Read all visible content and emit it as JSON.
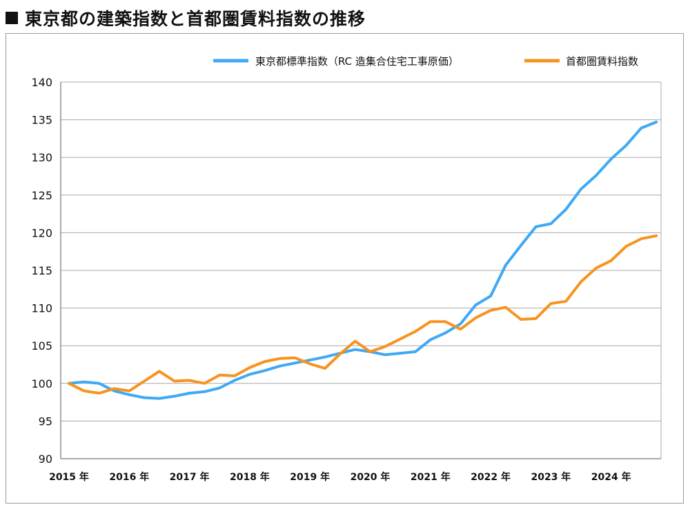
{
  "title": "東京都の建築指数と首都圏賃料指数の推移",
  "chart_data": {
    "type": "line",
    "title": "東京都の建築指数と首都圏賃料指数の推移",
    "ylim": [
      90,
      140
    ],
    "yticks": [
      "140",
      "135",
      "130",
      "125",
      "120",
      "115",
      "110",
      "105",
      "100",
      "95",
      "90"
    ],
    "xlim": [
      2015.0,
      2024.75
    ],
    "xticks": [
      {
        "x": 2015,
        "label": "2015 年"
      },
      {
        "x": 2016,
        "label": "2016 年"
      },
      {
        "x": 2017,
        "label": "2017 年"
      },
      {
        "x": 2018,
        "label": "2018 年"
      },
      {
        "x": 2019,
        "label": "2019 年"
      },
      {
        "x": 2020,
        "label": "2020 年"
      },
      {
        "x": 2021,
        "label": "2021 年"
      },
      {
        "x": 2022,
        "label": "2022 年"
      },
      {
        "x": 2023,
        "label": "2023 年"
      },
      {
        "x": 2024,
        "label": "2024 年"
      }
    ],
    "grid": true,
    "legend_position": "top-right",
    "x": [
      2015.0,
      2015.25,
      2015.5,
      2015.75,
      2016.0,
      2016.25,
      2016.5,
      2016.75,
      2017.0,
      2017.25,
      2017.5,
      2017.75,
      2018.0,
      2018.25,
      2018.5,
      2018.75,
      2019.0,
      2019.25,
      2019.5,
      2019.75,
      2020.0,
      2020.25,
      2020.5,
      2020.75,
      2021.0,
      2021.25,
      2021.5,
      2021.75,
      2022.0,
      2022.25,
      2022.5,
      2022.75,
      2023.0,
      2023.25,
      2023.5,
      2023.75,
      2024.0,
      2024.25,
      2024.5,
      2024.75
    ],
    "series": [
      {
        "name": "東京都標準指数（RC 造集合住宅工事原価）",
        "color": "#3fa9f5",
        "values": [
          100.0,
          100.2,
          100.0,
          99.0,
          98.5,
          98.1,
          98.0,
          98.3,
          98.7,
          98.9,
          99.4,
          100.4,
          101.2,
          101.7,
          102.3,
          102.7,
          103.1,
          103.5,
          104.0,
          104.5,
          104.2,
          103.8,
          104.0,
          104.2,
          105.8,
          106.7,
          107.9,
          110.4,
          111.6,
          115.7,
          118.3,
          120.8,
          121.2,
          123.1,
          125.8,
          127.6,
          129.8,
          131.6,
          133.9,
          134.7
        ]
      },
      {
        "name": "首都圏賃料指数",
        "color": "#f7931e",
        "values": [
          100.0,
          99.0,
          98.7,
          99.3,
          99.0,
          100.3,
          101.6,
          100.3,
          100.4,
          100.0,
          101.1,
          101.0,
          102.1,
          102.9,
          103.3,
          103.4,
          102.6,
          102.0,
          103.9,
          105.6,
          104.2,
          104.9,
          105.9,
          106.9,
          108.2,
          108.2,
          107.2,
          108.7,
          109.7,
          110.1,
          108.5,
          108.6,
          110.6,
          110.9,
          113.5,
          115.3,
          116.3,
          118.2,
          119.2,
          119.6
        ]
      }
    ]
  }
}
